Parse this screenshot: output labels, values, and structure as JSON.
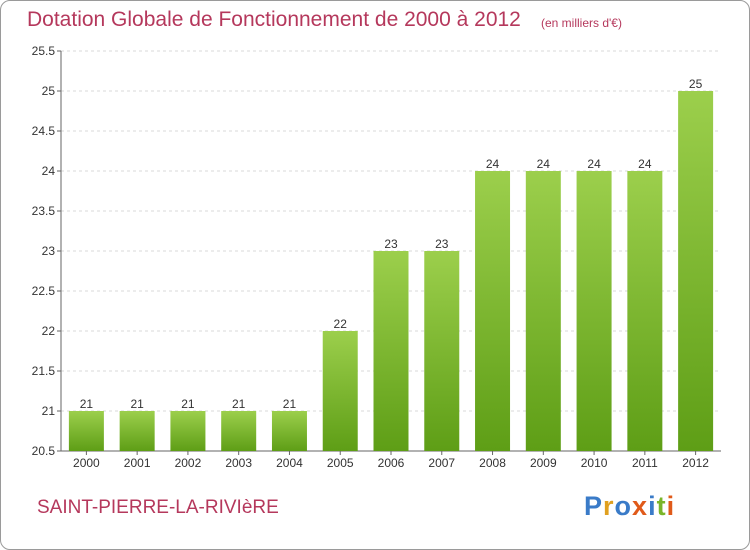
{
  "header": {
    "title": "Dotation Globale de Fonctionnement de 2000 à 2012",
    "subtitle": "(en milliers d'€)"
  },
  "footer": {
    "commune": "SAINT-PIERRE-LA-RIVIèRE",
    "logo": "Proxiti",
    "logo_colors": [
      "#3a7bc8",
      "#e0a020",
      "#3a7bc8",
      "#e05a1a",
      "#3a7bc8",
      "#7ab52a",
      "#e05a1a"
    ]
  },
  "colors": {
    "accent_text": "#b5385c",
    "bar_top": "#9ccf4c",
    "bar_bottom": "#5e9e16"
  },
  "chart_data": {
    "type": "bar",
    "categories": [
      "2000",
      "2001",
      "2002",
      "2003",
      "2004",
      "2005",
      "2006",
      "2007",
      "2008",
      "2009",
      "2010",
      "2011",
      "2012"
    ],
    "values": [
      21,
      21,
      21,
      21,
      21,
      22,
      23,
      23,
      24,
      24,
      24,
      24,
      25
    ],
    "value_labels": [
      "21",
      "21",
      "21",
      "21",
      "21",
      "22",
      "23",
      "23",
      "24",
      "24",
      "24",
      "24",
      "25"
    ],
    "yticks": [
      "20.5",
      "21",
      "21.5",
      "22",
      "22.5",
      "23",
      "23.5",
      "24",
      "24.5",
      "25",
      "25.5"
    ],
    "ylim": [
      20.5,
      25.5
    ],
    "grid": true,
    "title": "Dotation Globale de Fonctionnement de 2000 à 2012",
    "xlabel": "",
    "ylabel": ""
  }
}
